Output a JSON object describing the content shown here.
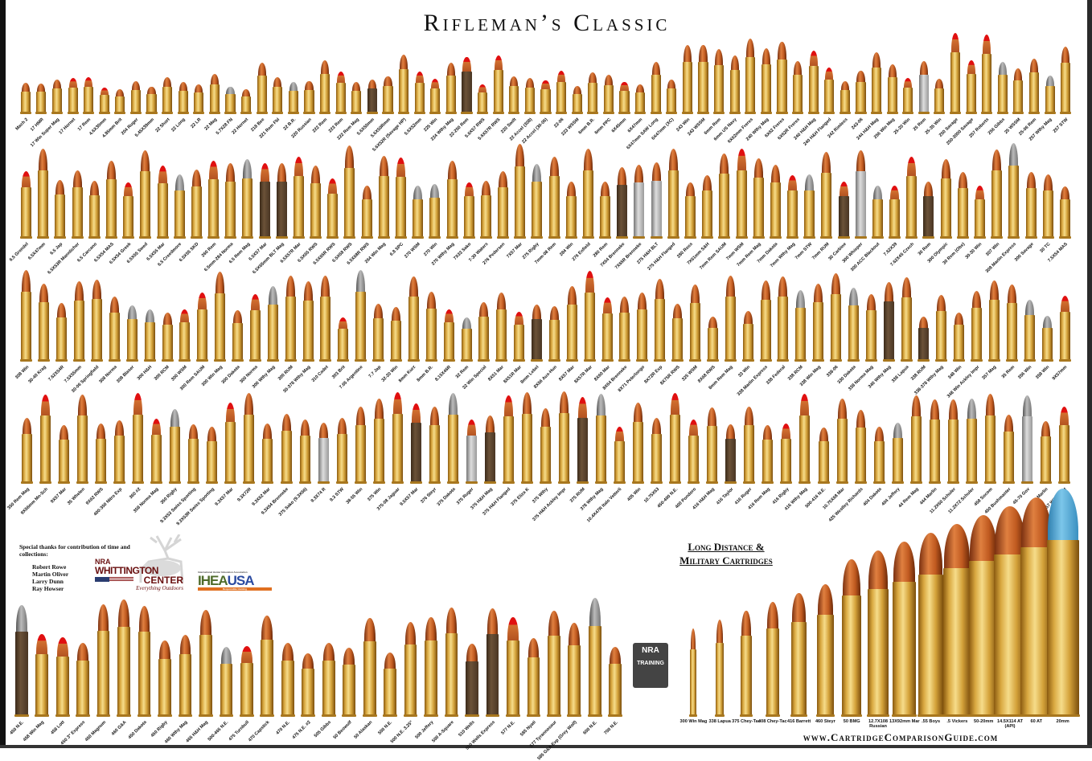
{
  "title": "Rifleman’s Classic",
  "colors": {
    "brass": "#d9a840",
    "copper": "#c05a20",
    "tip_red": "#e01010",
    "frame": "#111111"
  },
  "rows": [
    {
      "cartridges": [
        "Mach 2",
        "17 HMR",
        "17 Win Super Mag",
        "17 Hornet",
        "17 Rem",
        "4.6X30mm",
        "4.85mm Brit",
        "204 Ruger",
        "5.45X39mm",
        "22 Short",
        "22 Long",
        "22 LR",
        "22 Mag",
        "5.7X28 FN",
        "22 Hornet",
        "218 Bee",
        "221 Rem Fbl",
        "22 B.R.",
        "220 Russian",
        "222 Rem",
        "223 Rem",
        "222 Rem Mag",
        "5.6X50mm",
        "5.6X50Rmm",
        "5.6X52R (Savage HP)",
        "5.6X52mm",
        "225 Win",
        "224 Wthy Mag",
        "22-250 Rem",
        "5.6X57 RWS",
        "5.6X57R RWS",
        "220 Swift",
        "22 Accel (308)",
        "22 Accel (30-06)",
        "22-06",
        "223 WSSM",
        "6mm B.R.",
        "6mm PPC",
        "6X45mm",
        "6X47mm",
        "6X47mm SAW Long",
        "6X47mm (XC)",
        "243 Win",
        "243 WSSM",
        "6mm Rem",
        "6mm US Navy",
        "6X62mm Freres",
        "240 Wthy Mag",
        "6X62 Freres",
        "6X62R Freres",
        "240 H&H Mag",
        "240 H&H Flanged",
        "242 Rimless",
        "243-06",
        "244 H&H Mag",
        "256 Win Mag",
        "25-20 Win",
        "25 Rem",
        "25-35 Win",
        "250 Savage",
        "250-3000 Savage",
        "257 Roberts",
        "256 Gibbs",
        "25 WSSM",
        "25-06 Rem",
        "257 Wthy Mag",
        "257 STW"
      ]
    },
    {
      "cartridges": [
        "6.5 Grendel",
        "6.5X47mm",
        "6.5 Jap",
        "6.5X53R Mannlicher",
        "6.5 Carcano",
        "6.5X54 MAS",
        "6.5X54 Greek",
        "6.5X55 Swed",
        "6.5X55 Mar",
        "6.5 Creedmore",
        "6.5X55 SKD",
        "260 Rem",
        "6.5mm-284 Norma",
        "6.5 Rem Mag",
        "6.5X57 Mar",
        "6.5X65mm BLT Mag",
        "6.5X57R Mar",
        "6.5X65 RWS",
        "6.5X65R RWS",
        "6.5X68 RWS",
        "6.5X68R RWS",
        "264 Win Mag",
        "6.8 SPC",
        "270 WSM",
        "270 Win",
        "270 Wthy Mag",
        "7X33 Sako",
        "7-30 Waters",
        "276 Pedersen",
        "7X57 Mar",
        "275 Rigby",
        "7mm-08 Rem",
        "284 Win",
        "276 Enfield",
        "280 Rem",
        "7X64 Brenneke",
        "7X65R Brenneke",
        "275 H&H BLT",
        "275 H&H Flanged",
        "280 Ross",
        "7X61mm S&H",
        "7mm Rem SAUM",
        "7mm WSM",
        "7mm Rem Mag",
        "7mm Dakota",
        "7mm Wthy Mag",
        "7mm STW",
        "7mm RUM",
        "30 Carbine",
        "300 Whisper",
        "300 ACC Blackout",
        "7.62X39",
        "7.62X45 Czech",
        "30 Rem",
        "300 Olympic",
        "30 Rem (Obs)",
        "30-30 Win",
        "307 Win",
        "308 Marlin Express",
        "300 Savage",
        "30 TC",
        "7.5X54 MAS"
      ]
    },
    {
      "cartridges": [
        "308 Win",
        "30-40 Krag",
        "7.62X54R",
        "7.5X55mm",
        "30-06 Springfield",
        "308 Norma",
        "308 Blaser",
        "300 H&H",
        "300 RCM",
        "300 WSM",
        "300 Rem SAUM",
        "300 Win Mag",
        "300 Dakota",
        "300 Norma",
        "300 Wthy Mag",
        "300 RUM",
        "30-378 Wthy Mag",
        "310 Cadet",
        "303 Brit",
        "7.65 Argentine",
        "7.7 Jap",
        "32-20 Win",
        "8mm Kurz",
        "8mm B.R.",
        "8.15X46R",
        "32 Rem",
        "32 Win Special",
        "8X51 Mar",
        "8X51R Mar",
        "8mm Lebel",
        "8X56 Aus-Hun",
        "8X57 Mar",
        "8X57R Mar",
        "8X60 Mar",
        "8X64 Brenneke",
        "8X71 Peterlongo",
        "8X72R Exp",
        "8X75R RWS",
        "325 WSM",
        "8X68 RWS",
        "8mm Rem Mag",
        "33 Win",
        "338 Marlin Express",
        "338 Federal",
        "338 RCM",
        "338 Win Mag",
        "338-06",
        "330 Dakota",
        "338 Norma Mag",
        "340 Wthy Mag",
        "338 Lapua",
        "338 RUM",
        "338-378 Wthy Mag",
        "348 Win",
        "348 Win Ackley Impr",
        "357 Mag",
        "35 Rem",
        "356 Win",
        "358 Win",
        "9X57mm"
      ]
    },
    {
      "cartridges": [
        "350 Rem Mag",
        "9X56mm Mn-Sch",
        "9X57 Mar",
        "35 Whelen",
        "9X62 RWS",
        "400-350 Nitro Exp",
        "360 #2",
        "358 Norma Mag",
        "350 Rigby",
        "9.3X53 Swiss Sporting",
        "9.3X53R Swiss Sporting",
        "9.3X57 Mar",
        "9.3X72R",
        "9.3X62 Mar",
        "9.3X64 Brenneke",
        "375 Sako (9.3X66)",
        "9.3X74 R",
        "9.3 STW",
        "38-55 Win",
        "375 Win",
        "375-08 Jaguar",
        "9.5X57 Mar",
        "376 Steyr",
        "375 Dakota",
        "375 Ruger",
        "375 H&H Mag",
        "375 H&H Flanged",
        "375 Eliza K",
        "375 Wthy",
        "375 H&H Ackley Impr",
        "375 RUM",
        "378 Wthy Mag",
        "10.4X47R Italo Vetterli",
        "405 Win",
        "10.75X63",
        "450-400 N.E.",
        "400 Pondoro",
        "416 H&H Mag",
        "416 Taylor",
        "416 Ruger",
        "416 Rem Mag",
        "416 Rigby",
        "416 Wthy Mag",
        "500-416 N.E.",
        "10.75X68 Mar",
        "425 Westley Richards",
        "404 Dakota",
        "404 Jeffery",
        "44 Rem Mag",
        "444 Marlin",
        "11.2X60 Schuler",
        "11.2X72 Schuler",
        "458 Socom",
        "450 Bushmaster",
        "45-70 Gov",
        "450 Marlin",
        "457 Wild West"
      ]
    },
    {
      "cartridges": [
        "450 N.E.",
        "458 Win Mag",
        "458 Lott",
        "450 3\" Express",
        "450 Magnum",
        "460 G&A",
        "450 Dakota",
        "450 Rigby",
        "460 Wthy Mag",
        "465 H&H Mag",
        "500-465 N.E.",
        "475 Turnbull",
        "470 Capstick",
        "470 N.E.",
        "475 N.E. #2",
        "505 Gibbs",
        "50 Beowulf",
        "50 Alaskan",
        "500 N.E.",
        "500 N.E. 3.25\"",
        "500 Jeffery",
        "500 A-Square",
        "510 Wells",
        "510 Wells Express",
        "577 N.E.",
        "585 Nyati",
        "577 Tyrannosaur",
        "585 G&A Exp (Grey Wolf)",
        "600 N.E.",
        "700 N.E."
      ]
    }
  ],
  "long_distance": {
    "heading_line1": "Long Distance &",
    "heading_line2": "Military Cartridges",
    "cartridges": [
      "300 Win Mag",
      "338 Lapua",
      "375 Chey-Tac",
      "408 Chey-Tac",
      "416 Barrett",
      "460 Steyr",
      "50 BMG",
      "12.7X108 Russian",
      "13X92mm Mar",
      ".55 Boys",
      ".5 Vickers",
      "50-20mm",
      "14.5X114 AT (API)",
      "60 AT",
      "20mm"
    ]
  },
  "credits": {
    "intro": "Special thanks for contribution of time and collections:",
    "names": [
      "Robert Rowe",
      "Martin Oliver",
      "Larry Dunn",
      "Ray Howser"
    ]
  },
  "logos": {
    "nra_whittington": {
      "line1": "NRA",
      "line2": "WHITTINGTON",
      "line3": "CENTER",
      "tagline": "Everything Outdoors"
    },
    "ihea": {
      "top": "International Hunter Education Association",
      "main_a": "IHEA",
      "main_b": "USA",
      "tagline": "Responsible Hunting"
    },
    "nra_training": {
      "line1": "NRA",
      "line2": "TRAINING"
    }
  },
  "footer": {
    "url": "www.CartridgeComparisonGuide.com"
  }
}
